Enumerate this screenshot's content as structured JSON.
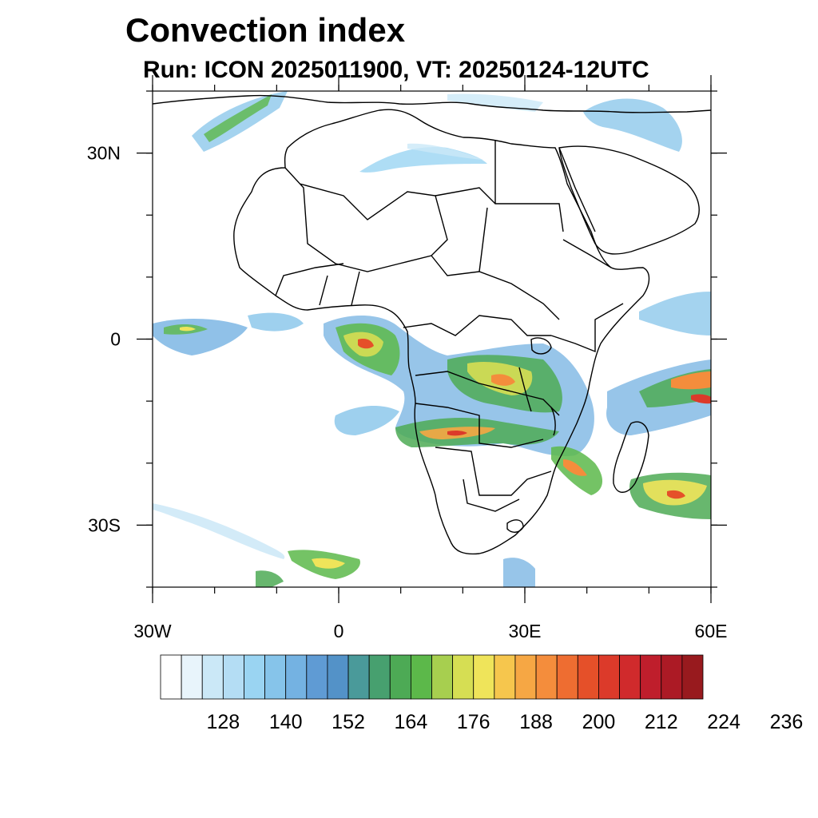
{
  "title": "Convection index",
  "subtitle": "Run: ICON 2025011900,  VT: 20250124-12UTC",
  "map": {
    "lon_range": [
      -30,
      60
    ],
    "lat_range": [
      -40,
      40
    ],
    "lon_ticks": [
      {
        "value": -30,
        "label": "30W"
      },
      {
        "value": 0,
        "label": "0"
      },
      {
        "value": 30,
        "label": "30E"
      },
      {
        "value": 60,
        "label": "60E"
      }
    ],
    "lat_ticks": [
      {
        "value": 30,
        "label": "30N"
      },
      {
        "value": 0,
        "label": "0"
      },
      {
        "value": -30,
        "label": "30S"
      }
    ]
  },
  "colorbar": {
    "colors": [
      "#ffffff",
      "#e8f4fb",
      "#cbe8f7",
      "#b4ddf4",
      "#9ad4f2",
      "#86c4ea",
      "#74b2e2",
      "#5f9bd4",
      "#5392c8",
      "#4a9a9a",
      "#47a06f",
      "#4daa55",
      "#5cb84a",
      "#a7cf4f",
      "#d6de53",
      "#efe45a",
      "#f6c64d",
      "#f6a744",
      "#f48d3c",
      "#ee6d31",
      "#e55029",
      "#dc3a2a",
      "#d02a2c",
      "#bf1e2c",
      "#ac1a25",
      "#981a1e"
    ],
    "labels": [
      "128",
      "140",
      "152",
      "164",
      "176",
      "188",
      "200",
      "212",
      "224",
      "236"
    ],
    "label_boundary_index": [
      3,
      6,
      9,
      12,
      15,
      18,
      21,
      24,
      27,
      30
    ]
  }
}
